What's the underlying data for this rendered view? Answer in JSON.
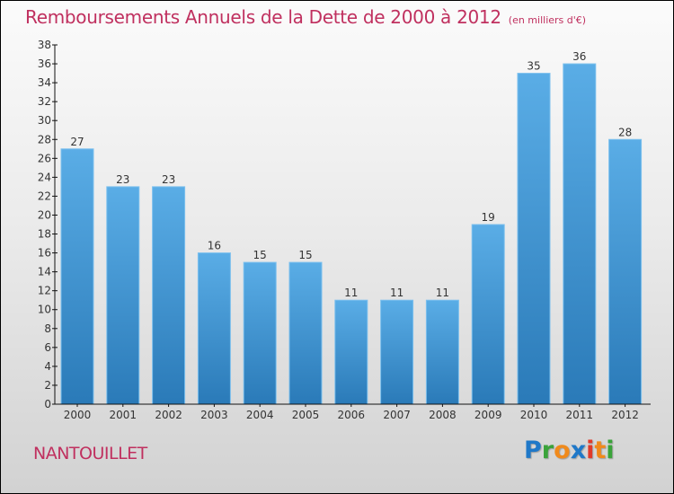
{
  "header": {
    "title": "Remboursements Annuels de la Dette de 2000 à 2012",
    "subtitle": "(en milliers d'€)"
  },
  "footer": {
    "town": "NANTOUILLET",
    "logo_letters": [
      {
        "char": "P",
        "color": "#1f78c8"
      },
      {
        "char": "r",
        "color": "#3aa33a"
      },
      {
        "char": "o",
        "color": "#f08a1c"
      },
      {
        "char": "x",
        "color": "#1f78c8"
      },
      {
        "char": "i",
        "color": "#e03a2a"
      },
      {
        "char": "t",
        "color": "#f08a1c"
      },
      {
        "char": "i",
        "color": "#3aa33a"
      }
    ]
  },
  "colors": {
    "title": "#c0305f",
    "bar_top": "#5aade6",
    "bar_bottom": "#2a7ab8"
  },
  "chart_data": {
    "type": "bar",
    "title": "Remboursements Annuels de la Dette de 2000 à 2012",
    "subtitle": "(en milliers d'€)",
    "xlabel": "",
    "ylabel": "",
    "categories": [
      "2000",
      "2001",
      "2002",
      "2003",
      "2004",
      "2005",
      "2006",
      "2007",
      "2008",
      "2009",
      "2010",
      "2011",
      "2012"
    ],
    "values": [
      27,
      23,
      23,
      16,
      15,
      15,
      11,
      11,
      11,
      19,
      35,
      36,
      28
    ],
    "ylim": [
      0,
      38
    ],
    "yticks": [
      0,
      2,
      4,
      6,
      8,
      10,
      12,
      14,
      16,
      18,
      20,
      22,
      24,
      26,
      28,
      30,
      32,
      34,
      36,
      38
    ],
    "grid": false,
    "legend": "none",
    "data_labels": true
  }
}
